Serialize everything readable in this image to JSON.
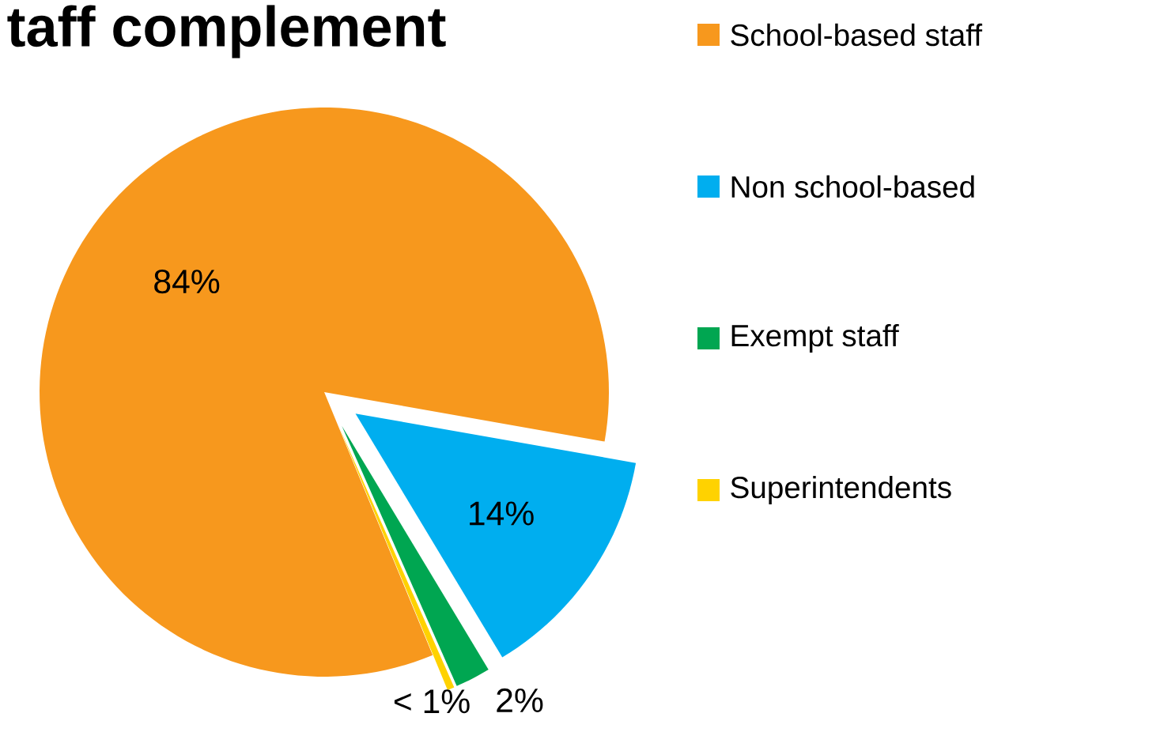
{
  "chart_data": {
    "type": "pie",
    "title": "taff complement",
    "categories": [
      "School-based staff",
      "Non school-based",
      "Exempt staff",
      "Superintendents"
    ],
    "values": [
      84,
      13.6,
      2,
      0.4
    ],
    "colors": [
      "#f7981d",
      "#00aeef",
      "#00a651",
      "#ffd200"
    ],
    "value_labels": [
      "84%",
      "14%",
      "2%",
      "< 1%"
    ],
    "legend": "right"
  }
}
